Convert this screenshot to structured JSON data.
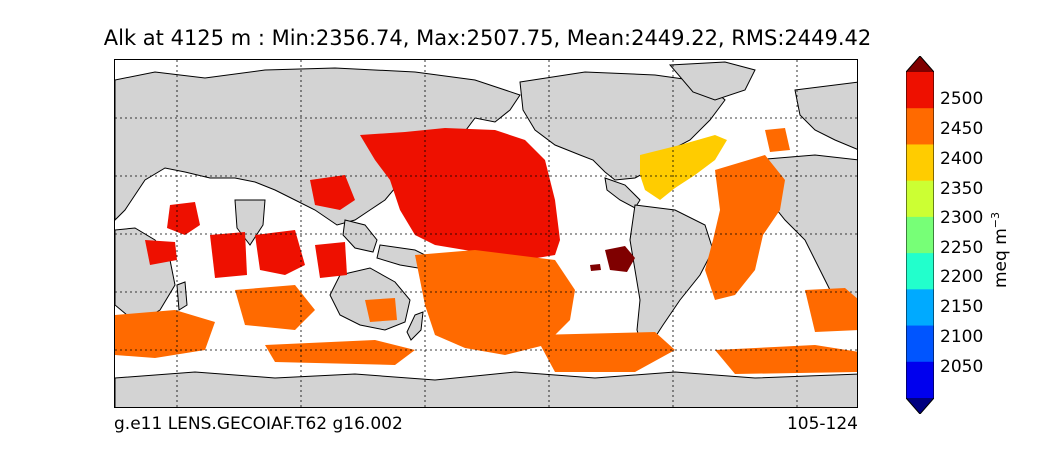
{
  "header": {
    "title": "Alk at 4125 m : Min:2356.74, Max:2507.75, Mean:2449.22, RMS:2449.42"
  },
  "map": {
    "projection": "cylindrical",
    "land_color": "#d3d3d3",
    "ocean_no_data_color": "#ffffff",
    "gridlines": true,
    "regions": [
      {
        "name": "North Pacific",
        "level": "2450-2500",
        "color": "#ee1000"
      },
      {
        "name": "Western Pacific / Indian Ocean patches",
        "level": "2450-2500",
        "color": "#ee1000"
      },
      {
        "name": "Southern Ocean",
        "level": "2400-2450",
        "color": "#ff6a00"
      },
      {
        "name": "South Atlantic",
        "level": "2400-2450",
        "color": "#ff6a00"
      },
      {
        "name": "Caribbean / North-West Atlantic",
        "level": "2350-2400",
        "color": "#ffcc00"
      },
      {
        "name": "Peru Basin",
        "level": "2500+",
        "color": "#7f0000"
      }
    ]
  },
  "footer": {
    "case_label": "g.e11 LENS.GECOIAF.T62 g16.002",
    "years_label": "105-124"
  },
  "colorbar": {
    "unit_label": "meq m",
    "unit_exponent": "−3",
    "ticks": [
      "2500",
      "2450",
      "2400",
      "2350",
      "2300",
      "2250",
      "2200",
      "2150",
      "2100",
      "2050"
    ],
    "levels": [
      {
        "min": 2500,
        "max": null,
        "color": "#7f0000"
      },
      {
        "min": 2450,
        "max": 2500,
        "color": "#ee1000"
      },
      {
        "min": 2400,
        "max": 2450,
        "color": "#ff6a00"
      },
      {
        "min": 2350,
        "max": 2400,
        "color": "#ffcc00"
      },
      {
        "min": 2300,
        "max": 2350,
        "color": "#ccff33"
      },
      {
        "min": 2250,
        "max": 2300,
        "color": "#77ff77"
      },
      {
        "min": 2200,
        "max": 2250,
        "color": "#22ffcc"
      },
      {
        "min": 2150,
        "max": 2200,
        "color": "#00aaff"
      },
      {
        "min": 2100,
        "max": 2150,
        "color": "#0055ff"
      },
      {
        "min": 2050,
        "max": 2100,
        "color": "#0000ee"
      },
      {
        "min": null,
        "max": 2050,
        "color": "#000080"
      }
    ]
  }
}
